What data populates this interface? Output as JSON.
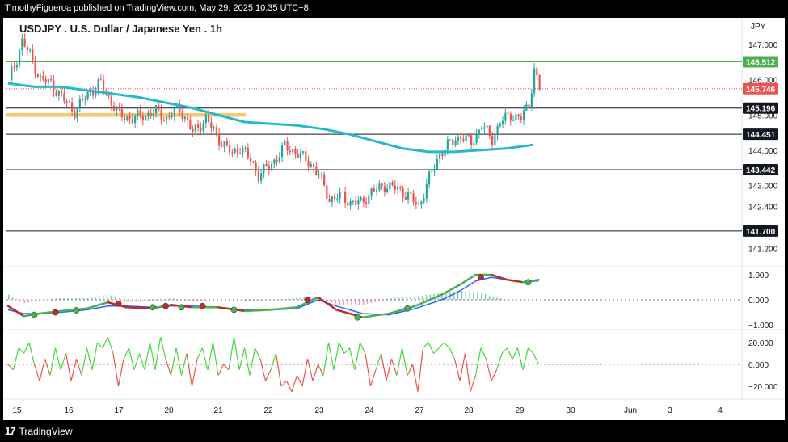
{
  "header": {
    "publisher_line": "TimothyFigueroa published on TradingView.com, May 29, 2025 10:35 UTC+8",
    "chart_title": "USDJPY . U.S. Dollar / Japanese Yen . 1h",
    "currency": "JPY"
  },
  "footer": {
    "logo_glyph": "17",
    "brand": "TradingView"
  },
  "colors": {
    "up": "#26a69a",
    "down": "#ef5350",
    "ma": "#26b8cc",
    "zone": "#f7c56b",
    "green_level": "#4caf50",
    "macd_fast": "#4caf50",
    "macd_slow": "#c62828",
    "signal": "#2962ff",
    "osc_up": "#43d83b",
    "osc_down": "#ef5350"
  },
  "price_axis": {
    "ticks": [
      "147.000",
      "146.000",
      "145.000",
      "144.000",
      "143.000",
      "142.400",
      "141.200"
    ],
    "tick_values": [
      147.0,
      146.0,
      145.0,
      144.0,
      143.0,
      142.4,
      141.2
    ],
    "lines": [
      {
        "label": "146.512",
        "value": 146.512,
        "style": "green-line"
      },
      {
        "label": "145.746",
        "value": 145.746,
        "style": "current"
      },
      {
        "label": "145.196",
        "value": 145.196,
        "style": "black-line"
      },
      {
        "label": "144.451",
        "value": 144.451,
        "style": "black-line"
      },
      {
        "label": "143.442",
        "value": 143.442,
        "style": "black-line"
      },
      {
        "label": "141.700",
        "value": 141.7,
        "style": "black-line"
      }
    ]
  },
  "macd_axis": {
    "ticks": [
      "1.000",
      "0.000",
      "−1.000"
    ],
    "tick_values": [
      1,
      0,
      -1
    ]
  },
  "osc_axis": {
    "ticks": [
      "20.000",
      "0.000",
      "−20.000"
    ],
    "tick_values": [
      20,
      0,
      -20
    ]
  },
  "time_axis": [
    "15",
    "16",
    "17",
    "20",
    "21",
    "22",
    "23",
    "24",
    "27",
    "28",
    "29",
    "30",
    "Jun",
    "3",
    "4"
  ],
  "chart_data": {
    "type": "candlestick",
    "symbol": "USDJPY",
    "interval": "1h",
    "ylim": [
      140.8,
      147.35
    ],
    "supply_demand_zone": [
      144.95,
      145.05
    ],
    "close_path": [
      [
        0,
        146.0
      ],
      [
        3,
        146.6
      ],
      [
        5,
        147.1
      ],
      [
        8,
        146.7
      ],
      [
        12,
        146.0
      ],
      [
        16,
        145.9
      ],
      [
        20,
        145.5
      ],
      [
        25,
        145.1
      ],
      [
        30,
        145.6
      ],
      [
        35,
        145.9
      ],
      [
        38,
        145.5
      ],
      [
        42,
        145.0
      ],
      [
        47,
        144.9
      ],
      [
        52,
        145.0
      ],
      [
        56,
        145.1
      ],
      [
        60,
        144.9
      ],
      [
        65,
        145.2
      ],
      [
        70,
        144.5
      ],
      [
        75,
        144.9
      ],
      [
        80,
        144.3
      ],
      [
        85,
        143.9
      ],
      [
        88,
        144.1
      ],
      [
        92,
        143.7
      ],
      [
        95,
        143.3
      ],
      [
        100,
        143.6
      ],
      [
        105,
        144.1
      ],
      [
        110,
        143.9
      ],
      [
        115,
        143.6
      ],
      [
        118,
        143.3
      ],
      [
        122,
        142.6
      ],
      [
        127,
        142.7
      ],
      [
        130,
        142.5
      ],
      [
        134,
        142.5
      ],
      [
        138,
        142.8
      ],
      [
        143,
        143.0
      ],
      [
        148,
        142.9
      ],
      [
        152,
        142.7
      ],
      [
        156,
        142.4
      ],
      [
        160,
        143.2
      ],
      [
        164,
        143.9
      ],
      [
        168,
        144.2
      ],
      [
        172,
        144.4
      ],
      [
        176,
        144.2
      ],
      [
        180,
        144.7
      ],
      [
        184,
        144.3
      ],
      [
        187,
        144.8
      ],
      [
        191,
        145.0
      ],
      [
        195,
        144.9
      ],
      [
        198,
        145.3
      ],
      [
        200,
        146.3
      ],
      [
        202,
        145.75
      ]
    ],
    "moving_average": [
      [
        0,
        145.9
      ],
      [
        10,
        145.8
      ],
      [
        20,
        145.8
      ],
      [
        30,
        145.7
      ],
      [
        40,
        145.6
      ],
      [
        50,
        145.5
      ],
      [
        60,
        145.35
      ],
      [
        70,
        145.2
      ],
      [
        80,
        145.0
      ],
      [
        90,
        144.8
      ],
      [
        100,
        144.75
      ],
      [
        110,
        144.7
      ],
      [
        120,
        144.6
      ],
      [
        130,
        144.45
      ],
      [
        140,
        144.25
      ],
      [
        150,
        144.05
      ],
      [
        160,
        143.95
      ],
      [
        170,
        143.95
      ],
      [
        180,
        144.0
      ],
      [
        190,
        144.05
      ],
      [
        200,
        144.15
      ]
    ],
    "macd": {
      "fast": [
        [
          0,
          -0.25
        ],
        [
          6,
          -0.65
        ],
        [
          12,
          -0.55
        ],
        [
          20,
          -0.45
        ],
        [
          30,
          -0.35
        ],
        [
          38,
          -0.1
        ],
        [
          45,
          -0.3
        ],
        [
          55,
          -0.35
        ],
        [
          62,
          -0.2
        ],
        [
          70,
          -0.3
        ],
        [
          80,
          -0.3
        ],
        [
          90,
          -0.45
        ],
        [
          100,
          -0.4
        ],
        [
          110,
          -0.3
        ],
        [
          118,
          0.1
        ],
        [
          125,
          -0.4
        ],
        [
          135,
          -0.7
        ],
        [
          145,
          -0.55
        ],
        [
          155,
          -0.25
        ],
        [
          165,
          0.2
        ],
        [
          172,
          0.6
        ],
        [
          178,
          1.0
        ],
        [
          184,
          1.0
        ],
        [
          190,
          0.8
        ],
        [
          196,
          0.7
        ],
        [
          202,
          0.8
        ]
      ],
      "slow": [
        [
          0,
          -0.4
        ],
        [
          6,
          -0.55
        ],
        [
          12,
          -0.55
        ],
        [
          20,
          -0.5
        ],
        [
          30,
          -0.4
        ],
        [
          38,
          -0.25
        ],
        [
          45,
          -0.25
        ],
        [
          55,
          -0.3
        ],
        [
          62,
          -0.25
        ],
        [
          70,
          -0.25
        ],
        [
          80,
          -0.3
        ],
        [
          90,
          -0.4
        ],
        [
          100,
          -0.4
        ],
        [
          110,
          -0.35
        ],
        [
          118,
          0.0
        ],
        [
          125,
          -0.25
        ],
        [
          135,
          -0.55
        ],
        [
          145,
          -0.6
        ],
        [
          155,
          -0.35
        ],
        [
          165,
          0.0
        ],
        [
          172,
          0.35
        ],
        [
          178,
          0.75
        ],
        [
          184,
          0.9
        ],
        [
          190,
          0.8
        ],
        [
          196,
          0.72
        ],
        [
          202,
          0.75
        ]
      ],
      "markers": [
        [
          10,
          -0.6,
          "green"
        ],
        [
          18,
          -0.5,
          "red"
        ],
        [
          26,
          -0.42,
          "green"
        ],
        [
          42,
          -0.15,
          "red"
        ],
        [
          55,
          -0.3,
          "green"
        ],
        [
          60,
          -0.25,
          "red"
        ],
        [
          66,
          -0.3,
          "green"
        ],
        [
          74,
          -0.25,
          "red"
        ],
        [
          86,
          -0.4,
          "green"
        ],
        [
          114,
          0.0,
          "red"
        ],
        [
          133,
          -0.7,
          "green"
        ],
        [
          152,
          -0.35,
          "green"
        ],
        [
          180,
          0.9,
          "red"
        ],
        [
          198,
          0.7,
          "green"
        ]
      ]
    },
    "oscillator": [
      [
        0,
        0
      ],
      [
        2,
        -5
      ],
      [
        4,
        15
      ],
      [
        6,
        10
      ],
      [
        8,
        20
      ],
      [
        10,
        0
      ],
      [
        12,
        -15
      ],
      [
        14,
        5
      ],
      [
        16,
        -10
      ],
      [
        18,
        15
      ],
      [
        20,
        -5
      ],
      [
        22,
        10
      ],
      [
        24,
        -15
      ],
      [
        26,
        5
      ],
      [
        28,
        -10
      ],
      [
        30,
        15
      ],
      [
        32,
        -5
      ],
      [
        34,
        20
      ],
      [
        36,
        15
      ],
      [
        38,
        25
      ],
      [
        40,
        10
      ],
      [
        42,
        -20
      ],
      [
        44,
        5
      ],
      [
        46,
        15
      ],
      [
        48,
        -5
      ],
      [
        50,
        10
      ],
      [
        52,
        -5
      ],
      [
        54,
        20
      ],
      [
        56,
        -5
      ],
      [
        58,
        25
      ],
      [
        60,
        5
      ],
      [
        62,
        -10
      ],
      [
        64,
        15
      ],
      [
        66,
        -10
      ],
      [
        68,
        10
      ],
      [
        70,
        -20
      ],
      [
        72,
        5
      ],
      [
        74,
        15
      ],
      [
        76,
        -5
      ],
      [
        78,
        20
      ],
      [
        80,
        -10
      ],
      [
        82,
        0
      ],
      [
        84,
        -5
      ],
      [
        86,
        25
      ],
      [
        88,
        -5
      ],
      [
        90,
        15
      ],
      [
        92,
        -10
      ],
      [
        94,
        15
      ],
      [
        96,
        5
      ],
      [
        98,
        -15
      ],
      [
        100,
        -5
      ],
      [
        102,
        10
      ],
      [
        104,
        -20
      ],
      [
        106,
        -15
      ],
      [
        108,
        -25
      ],
      [
        110,
        -10
      ],
      [
        112,
        -20
      ],
      [
        114,
        5
      ],
      [
        116,
        -15
      ],
      [
        118,
        0
      ],
      [
        120,
        -10
      ],
      [
        122,
        20
      ],
      [
        124,
        -5
      ],
      [
        126,
        20
      ],
      [
        128,
        10
      ],
      [
        130,
        15
      ],
      [
        132,
        -5
      ],
      [
        134,
        20
      ],
      [
        136,
        10
      ],
      [
        138,
        -20
      ],
      [
        140,
        -5
      ],
      [
        142,
        10
      ],
      [
        144,
        -15
      ],
      [
        146,
        5
      ],
      [
        148,
        -10
      ],
      [
        150,
        15
      ],
      [
        152,
        -10
      ],
      [
        154,
        0
      ],
      [
        156,
        -25
      ],
      [
        158,
        15
      ],
      [
        160,
        20
      ],
      [
        162,
        10
      ],
      [
        164,
        15
      ],
      [
        166,
        20
      ],
      [
        168,
        15
      ],
      [
        170,
        5
      ],
      [
        172,
        -15
      ],
      [
        174,
        10
      ],
      [
        176,
        -25
      ],
      [
        178,
        -10
      ],
      [
        180,
        15
      ],
      [
        182,
        5
      ],
      [
        184,
        -15
      ],
      [
        186,
        -5
      ],
      [
        188,
        10
      ],
      [
        190,
        15
      ],
      [
        192,
        5
      ],
      [
        194,
        15
      ],
      [
        196,
        -5
      ],
      [
        198,
        15
      ],
      [
        200,
        10
      ],
      [
        202,
        0
      ]
    ]
  }
}
